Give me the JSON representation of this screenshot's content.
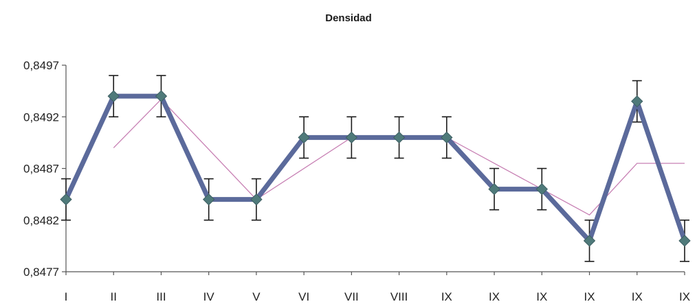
{
  "chart_data": {
    "type": "line",
    "title": "Densidad",
    "xlabel": "",
    "ylabel": "",
    "categories": [
      "I",
      "II",
      "III",
      "IV",
      "V",
      "VI",
      "VII",
      "VIII",
      "IX",
      "IX",
      "IX",
      "IX",
      "IX",
      "IX"
    ],
    "yticks": [
      "0,8477",
      "0,8482",
      "0,8487",
      "0,8492",
      "0,8497"
    ],
    "ylim": [
      0.8477,
      0.8497
    ],
    "grid": false,
    "legend": "none",
    "series": [
      {
        "values": [
          0.8484,
          0.8494,
          0.8494,
          0.8484,
          0.8484,
          0.849,
          0.849,
          0.849,
          0.849,
          0.8485,
          0.8485,
          0.848,
          0.84935,
          0.848
        ],
        "error": 0.0002,
        "color": "#5b6a9b",
        "marker_color": "#4f7a7a"
      },
      {
        "values": [
          null,
          0.8489,
          0.84937,
          null,
          0.8484,
          null,
          0.849,
          null,
          0.849,
          null,
          0.8485,
          0.84825,
          0.84875,
          0.84875
        ],
        "color": "#c77fb3"
      }
    ]
  }
}
